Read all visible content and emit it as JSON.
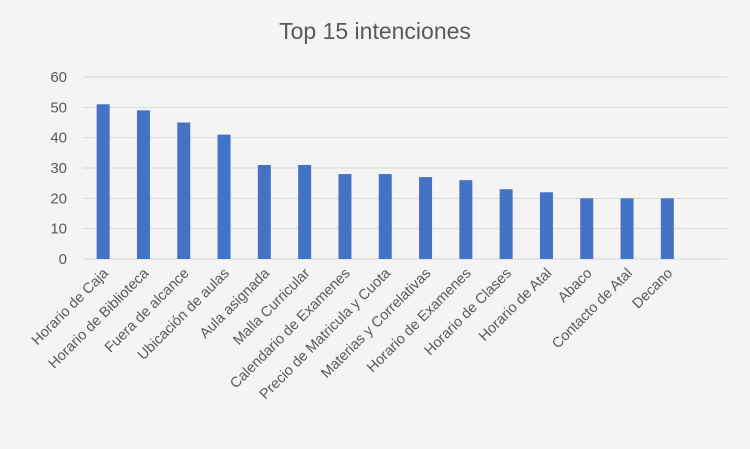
{
  "chart_data": {
    "type": "bar",
    "title": "Top 15 intenciones",
    "xlabel": "",
    "ylabel": "",
    "ylim": [
      0,
      60
    ],
    "yticks": [
      0,
      10,
      20,
      30,
      40,
      50,
      60
    ],
    "grid": true,
    "legend": "none",
    "bar_color": "#4472c4",
    "grid_color": "#d9d9d9",
    "categories": [
      "Horario de Caja",
      "Horario de Biblioteca",
      "Fuera de alcance",
      "Ubicación de aulas",
      "Aula asignada",
      "Malla Curricular",
      "Calendario de Examenes",
      "Precio de Matricula y Cuota",
      "Materias y Correlativas",
      "Horario de Examenes",
      "Horario de Clases",
      "Horario de Atal",
      "Abaco",
      "Contacto de Atal",
      "Decano"
    ],
    "values": [
      51,
      49,
      45,
      41,
      31,
      31,
      28,
      28,
      27,
      26,
      23,
      22,
      20,
      20,
      20
    ]
  }
}
